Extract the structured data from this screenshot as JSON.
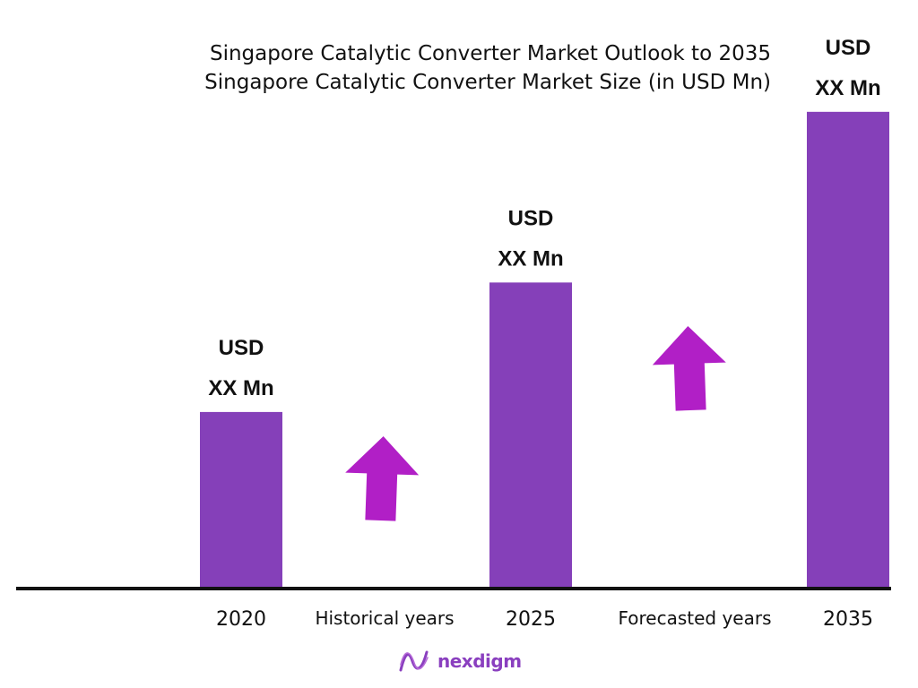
{
  "chart_data": {
    "type": "bar",
    "title": "Singapore Catalytic Converter Market Outlook to 2035",
    "subtitle": "Singapore Catalytic Converter Market Size (in USD Mn)",
    "categories": [
      "2020",
      "2025",
      "2035"
    ],
    "values": [
      30,
      52,
      81
    ],
    "value_labels": [
      [
        "USD",
        "XX Mn"
      ],
      [
        "USD",
        "XX Mn"
      ],
      [
        "USD",
        "XX Mn"
      ]
    ],
    "period_labels": [
      "Historical years",
      "Forecasted years"
    ],
    "ylim": [
      0,
      100
    ],
    "grid": false,
    "bar_color": "#8540b9",
    "arrow_color": "#b11fc6",
    "axis_color": "#111111"
  },
  "brand": {
    "name": "nexdigm",
    "color": "#8a3fbf"
  }
}
